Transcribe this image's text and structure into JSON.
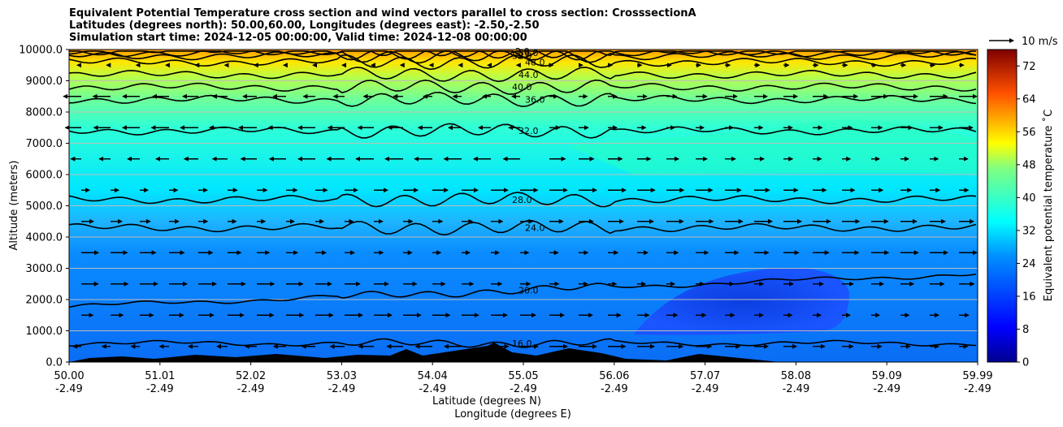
{
  "chart_data": {
    "type": "contour",
    "title_lines": [
      "Equivalent Potential Temperature cross section and wind vectors parallel to cross section: CrosssectionA",
      "Latitudes (degrees north): 50.00,60.00, Longitudes (degrees east): -2.50,-2.50",
      "Simulation start time: 2024-12-05 00:00:00, Valid time: 2024-12-08 00:00:00"
    ],
    "ylabel": "Altitude (meters)",
    "xlabel_line1": "Latitude (degrees N)",
    "xlabel_line2": "Longitude (degrees E)",
    "ylim": [
      0,
      10000
    ],
    "yticks": [
      {
        "value": 0,
        "label": "0.0"
      },
      {
        "value": 1000,
        "label": "1000.0"
      },
      {
        "value": 2000,
        "label": "2000.0"
      },
      {
        "value": 3000,
        "label": "3000.0"
      },
      {
        "value": 4000,
        "label": "4000.0"
      },
      {
        "value": 5000,
        "label": "5000.0"
      },
      {
        "value": 6000,
        "label": "6000.0"
      },
      {
        "value": 7000,
        "label": "7000.0"
      },
      {
        "value": 8000,
        "label": "8000.0"
      },
      {
        "value": 9000,
        "label": "9000.0"
      },
      {
        "value": 10000,
        "label": "10000.0"
      }
    ],
    "xticks": [
      {
        "lat": "50.00",
        "lon": "-2.49"
      },
      {
        "lat": "51.01",
        "lon": "-2.49"
      },
      {
        "lat": "52.02",
        "lon": "-2.49"
      },
      {
        "lat": "53.03",
        "lon": "-2.49"
      },
      {
        "lat": "54.04",
        "lon": "-2.49"
      },
      {
        "lat": "55.05",
        "lon": "-2.49"
      },
      {
        "lat": "56.06",
        "lon": "-2.49"
      },
      {
        "lat": "57.07",
        "lon": "-2.49"
      },
      {
        "lat": "58.08",
        "lon": "-2.49"
      },
      {
        "lat": "59.09",
        "lon": "-2.49"
      },
      {
        "lat": "59.99",
        "lon": "-2.49"
      }
    ],
    "colorbar": {
      "label": "Equivalent potential temperature ˚C",
      "min": 0,
      "max": 76,
      "ticks": [
        0,
        8,
        16,
        24,
        32,
        40,
        48,
        56,
        64,
        72
      ]
    },
    "quiver_key": {
      "label": "10 m/s",
      "value": 10
    },
    "contour_levels": [
      {
        "label": "16.0",
        "alt": 600
      },
      {
        "label": "20.0",
        "alt": 2300
      },
      {
        "label": "24.0",
        "alt": 4300
      },
      {
        "label": "28.0",
        "alt": 5200
      },
      {
        "label": "32.0",
        "alt": 7400
      },
      {
        "label": "36.0",
        "alt": 8400
      },
      {
        "label": "40.0",
        "alt": 8800
      },
      {
        "label": "44.0",
        "alt": 9200
      },
      {
        "label": "48.0",
        "alt": 9600
      },
      {
        "label": "52.0",
        "alt": 9800
      },
      {
        "label": "56.0",
        "alt": 9900
      },
      {
        "label": "60.0",
        "alt": 10000
      },
      {
        "label": "-2.0",
        "alt": 9950
      }
    ]
  }
}
